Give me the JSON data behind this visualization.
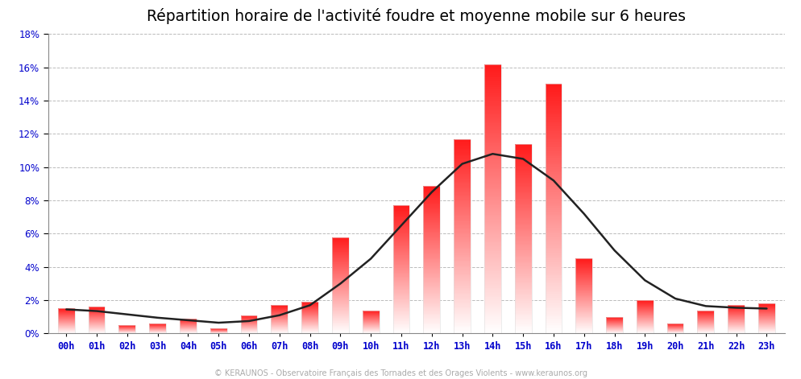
{
  "title": "Répartition horaire de l'activité foudre et moyenne mobile sur 6 heures",
  "footer": "© KERAUNOS - Observatoire Français des Tornades et des Orages Violents - www.keraunos.org",
  "categories": [
    "00h",
    "01h",
    "02h",
    "03h",
    "04h",
    "05h",
    "06h",
    "07h",
    "08h",
    "09h",
    "10h",
    "11h",
    "12h",
    "13h",
    "14h",
    "15h",
    "16h",
    "17h",
    "18h",
    "19h",
    "20h",
    "21h",
    "22h",
    "23h"
  ],
  "bar_values": [
    1.5,
    1.6,
    0.5,
    0.6,
    0.9,
    0.3,
    1.1,
    1.7,
    1.9,
    5.8,
    1.4,
    7.7,
    8.9,
    11.7,
    16.2,
    11.4,
    15.0,
    4.5,
    1.0,
    2.0,
    0.6,
    1.4,
    1.7,
    1.8
  ],
  "moving_avg": [
    1.45,
    1.35,
    1.15,
    0.95,
    0.8,
    0.65,
    0.75,
    1.1,
    1.7,
    3.0,
    4.5,
    6.5,
    8.5,
    10.2,
    10.8,
    10.5,
    9.2,
    7.2,
    5.0,
    3.2,
    2.1,
    1.65,
    1.55,
    1.5
  ],
  "bar_color_top": "#ff0000",
  "bar_color_bottom": "#ffffff",
  "line_color": "#222222",
  "background_color": "#ffffff",
  "grid_color": "#aaaaaa",
  "title_color": "#000000",
  "tick_color": "#0000cc",
  "footer_color": "#aaaaaa",
  "ylim": [
    0,
    18
  ],
  "yticks": [
    0,
    2,
    4,
    6,
    8,
    10,
    12,
    14,
    16,
    18
  ],
  "title_fontsize": 13.5,
  "tick_fontsize": 8.5,
  "footer_fontsize": 7,
  "bar_width": 0.55,
  "spine_color": "#888888"
}
